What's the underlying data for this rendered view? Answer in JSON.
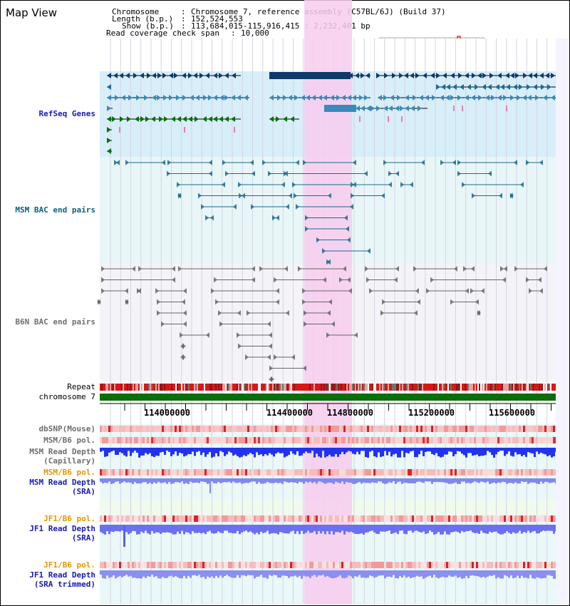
{
  "title": "Map View",
  "info": {
    "chromosome_key": "Chromosome",
    "chromosome_val": "Chromosome 7, reference assembly (C57BL/6J) (Build 37)",
    "length_key": "Length (b.p.)",
    "length_val": "152,524,553",
    "show_key": "Show (b.p.)",
    "show_val": "113,684,015-115,916,415 : 2,232,401 bp",
    "coverage_key": "Read coverage check span",
    "coverage_val": "10,000"
  },
  "tracks": {
    "refseq": "RefSeq Genes",
    "msm_bac": "MSM BAC end pairs",
    "b6n_bac": "B6N BAC end pairs",
    "repeat": "Repeat",
    "chromosome": "chromosome 7",
    "dbsnp": "dbSNP(Mouse)",
    "msm_b6_pol": "MSM/B6 pol.",
    "msm_depth_cap_1": "MSM Read Depth",
    "msm_depth_cap_2": "(Capillary)",
    "msm_b6_pol_2": "MSM/B6 pol.",
    "msm_depth_sra_1": "MSM Read Depth",
    "msm_depth_sra_2": "(SRA)",
    "jf1_b6_pol": "JF1/B6 pol.",
    "jf1_depth_sra_1": "JF1 Read Depth",
    "jf1_depth_sra_2": "(SRA)",
    "jf1_b6_pol_2": "JF1/B6 pol.",
    "jf1_depth_trim_1": "JF1 Read Depth",
    "jf1_depth_trim_2": "(SRA trimmed)"
  },
  "axis_ticks": [
    "114000000",
    "114400000",
    "114800000",
    "115200000",
    "115600000"
  ],
  "colors": {
    "refseq_bg": "#d8eef8",
    "msm_bg": "#e8f6f8",
    "b6n_bg": "#f4f4f8",
    "highlight": "#f8d0f0",
    "chromosome_bar": "#0a6e0a",
    "depth_blue": "#2233ee"
  }
}
